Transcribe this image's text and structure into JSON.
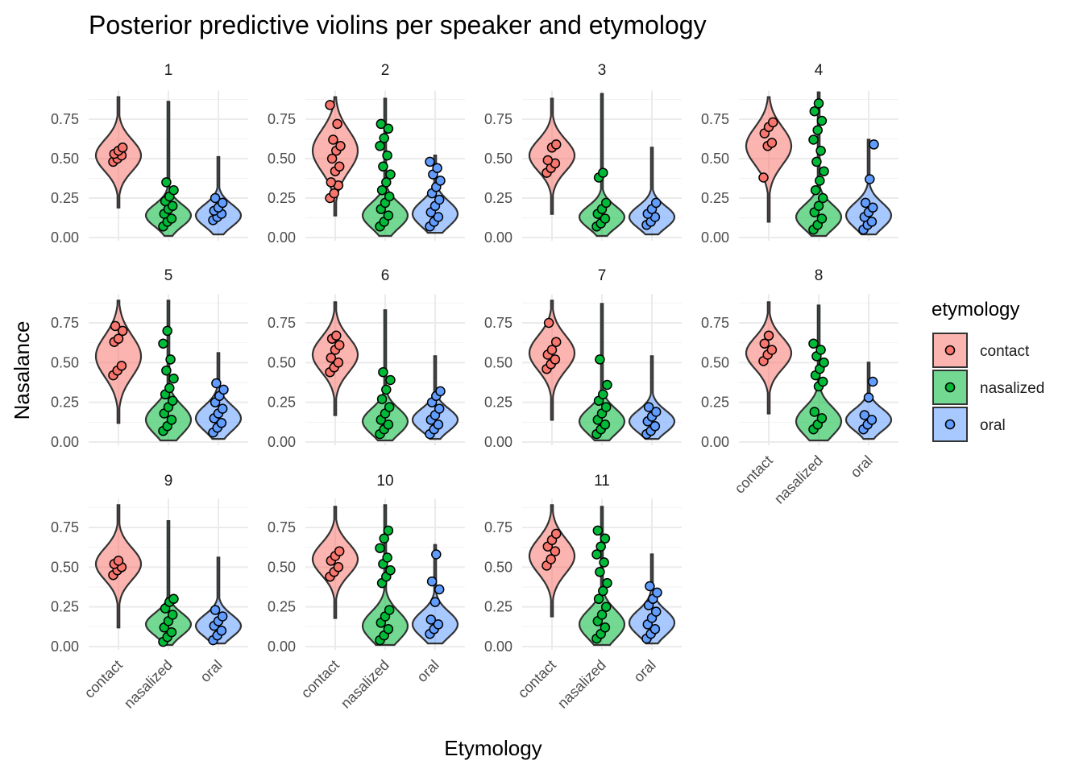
{
  "chart_data": {
    "type": "violin",
    "title": "Posterior predictive violins per speaker and etymology",
    "xlabel": "Etymology",
    "ylabel": "Nasalance",
    "categories": [
      "contact",
      "nasalized",
      "oral"
    ],
    "ylim": [
      0,
      0.9
    ],
    "yticks": [
      "0.00",
      "0.25",
      "0.50",
      "0.75"
    ],
    "grid": "on",
    "legend": {
      "title": "etymology",
      "position": "right",
      "entries": [
        {
          "label": "contact",
          "fill": "#F8766D"
        },
        {
          "label": "nasalized",
          "fill": "#00BA38"
        },
        {
          "label": "oral",
          "fill": "#619CFF"
        }
      ]
    },
    "facets": [
      {
        "speaker": "1",
        "violins": [
          {
            "min": 0.19,
            "max": 0.89,
            "median": 0.52,
            "spread": 0.1,
            "skew": 0
          },
          {
            "min": 0.01,
            "max": 0.86,
            "median": 0.14,
            "spread": 0.07,
            "skew": 1
          },
          {
            "min": 0.02,
            "max": 0.51,
            "median": 0.14,
            "spread": 0.07,
            "skew": 1
          }
        ],
        "points": [
          [
            0.48,
            0.5,
            0.52,
            0.53,
            0.55,
            0.57
          ],
          [
            0.07,
            0.1,
            0.12,
            0.15,
            0.18,
            0.2,
            0.23,
            0.26,
            0.3,
            0.35
          ],
          [
            0.11,
            0.13,
            0.15,
            0.17,
            0.19,
            0.22,
            0.25
          ]
        ]
      },
      {
        "speaker": "2",
        "violins": [
          {
            "min": 0.14,
            "max": 0.89,
            "median": 0.55,
            "spread": 0.13,
            "skew": 0
          },
          {
            "min": 0.01,
            "max": 0.88,
            "median": 0.14,
            "spread": 0.08,
            "skew": 1
          },
          {
            "min": 0.03,
            "max": 0.52,
            "median": 0.15,
            "spread": 0.08,
            "skew": 1
          }
        ],
        "points": [
          [
            0.25,
            0.28,
            0.33,
            0.35,
            0.42,
            0.45,
            0.5,
            0.55,
            0.58,
            0.62,
            0.72,
            0.84
          ],
          [
            0.07,
            0.1,
            0.14,
            0.18,
            0.22,
            0.26,
            0.3,
            0.35,
            0.4,
            0.45,
            0.52,
            0.58,
            0.63,
            0.69,
            0.72
          ],
          [
            0.07,
            0.1,
            0.13,
            0.16,
            0.2,
            0.24,
            0.28,
            0.32,
            0.36,
            0.4,
            0.44,
            0.48
          ]
        ]
      },
      {
        "speaker": "3",
        "violins": [
          {
            "min": 0.15,
            "max": 0.88,
            "median": 0.52,
            "spread": 0.1,
            "skew": 0
          },
          {
            "min": 0.01,
            "max": 0.91,
            "median": 0.13,
            "spread": 0.07,
            "skew": 1
          },
          {
            "min": 0.02,
            "max": 0.57,
            "median": 0.13,
            "spread": 0.07,
            "skew": 1
          }
        ],
        "points": [
          [
            0.41,
            0.44,
            0.47,
            0.49,
            0.57,
            0.59
          ],
          [
            0.07,
            0.09,
            0.12,
            0.15,
            0.18,
            0.22,
            0.38,
            0.41
          ],
          [
            0.08,
            0.1,
            0.13,
            0.15,
            0.18,
            0.22
          ]
        ]
      },
      {
        "speaker": "4",
        "violins": [
          {
            "min": 0.1,
            "max": 0.89,
            "median": 0.58,
            "spread": 0.12,
            "skew": 0
          },
          {
            "min": 0.01,
            "max": 0.92,
            "median": 0.13,
            "spread": 0.08,
            "skew": 1
          },
          {
            "min": 0.02,
            "max": 0.62,
            "median": 0.14,
            "spread": 0.08,
            "skew": 1
          }
        ],
        "points": [
          [
            0.38,
            0.58,
            0.6,
            0.66,
            0.7,
            0.73
          ],
          [
            0.05,
            0.08,
            0.12,
            0.16,
            0.2,
            0.25,
            0.3,
            0.36,
            0.42,
            0.48,
            0.55,
            0.62,
            0.68,
            0.74,
            0.8,
            0.85
          ],
          [
            0.05,
            0.08,
            0.1,
            0.13,
            0.16,
            0.19,
            0.22,
            0.37,
            0.59
          ]
        ]
      },
      {
        "speaker": "5",
        "violins": [
          {
            "min": 0.12,
            "max": 0.89,
            "median": 0.54,
            "spread": 0.13,
            "skew": 0
          },
          {
            "min": 0.01,
            "max": 0.89,
            "median": 0.14,
            "spread": 0.09,
            "skew": 1
          },
          {
            "min": 0.02,
            "max": 0.56,
            "median": 0.15,
            "spread": 0.08,
            "skew": 1
          }
        ],
        "points": [
          [
            0.42,
            0.45,
            0.48,
            0.63,
            0.65,
            0.7,
            0.73
          ],
          [
            0.07,
            0.1,
            0.14,
            0.18,
            0.22,
            0.26,
            0.3,
            0.34,
            0.4,
            0.45,
            0.52,
            0.62,
            0.7
          ],
          [
            0.06,
            0.09,
            0.12,
            0.15,
            0.18,
            0.21,
            0.25,
            0.29,
            0.33,
            0.37
          ]
        ]
      },
      {
        "speaker": "6",
        "violins": [
          {
            "min": 0.17,
            "max": 0.88,
            "median": 0.55,
            "spread": 0.11,
            "skew": 0
          },
          {
            "min": 0.01,
            "max": 0.83,
            "median": 0.13,
            "spread": 0.08,
            "skew": 1
          },
          {
            "min": 0.02,
            "max": 0.54,
            "median": 0.14,
            "spread": 0.07,
            "skew": 1
          }
        ],
        "points": [
          [
            0.44,
            0.47,
            0.5,
            0.53,
            0.58,
            0.61,
            0.65,
            0.67
          ],
          [
            0.05,
            0.08,
            0.11,
            0.14,
            0.18,
            0.22,
            0.27,
            0.33,
            0.39,
            0.44
          ],
          [
            0.05,
            0.08,
            0.11,
            0.14,
            0.17,
            0.21,
            0.25,
            0.29,
            0.32
          ]
        ]
      },
      {
        "speaker": "7",
        "violins": [
          {
            "min": 0.14,
            "max": 0.89,
            "median": 0.56,
            "spread": 0.11,
            "skew": 0
          },
          {
            "min": 0.01,
            "max": 0.87,
            "median": 0.13,
            "spread": 0.08,
            "skew": 1
          },
          {
            "min": 0.02,
            "max": 0.54,
            "median": 0.13,
            "spread": 0.07,
            "skew": 1
          }
        ],
        "points": [
          [
            0.46,
            0.49,
            0.52,
            0.55,
            0.58,
            0.63,
            0.75
          ],
          [
            0.05,
            0.08,
            0.11,
            0.14,
            0.18,
            0.22,
            0.26,
            0.3,
            0.36,
            0.52
          ],
          [
            0.05,
            0.07,
            0.1,
            0.13,
            0.16,
            0.19,
            0.22
          ]
        ]
      },
      {
        "speaker": "8",
        "violins": [
          {
            "min": 0.18,
            "max": 0.88,
            "median": 0.56,
            "spread": 0.1,
            "skew": 0
          },
          {
            "min": 0.01,
            "max": 0.86,
            "median": 0.13,
            "spread": 0.09,
            "skew": 1
          },
          {
            "min": 0.02,
            "max": 0.5,
            "median": 0.14,
            "spread": 0.07,
            "skew": 1
          }
        ],
        "points": [
          [
            0.51,
            0.55,
            0.58,
            0.62,
            0.67
          ],
          [
            0.08,
            0.11,
            0.15,
            0.19,
            0.35,
            0.38,
            0.42,
            0.46,
            0.5,
            0.54,
            0.58,
            0.62
          ],
          [
            0.08,
            0.11,
            0.14,
            0.17,
            0.28,
            0.38
          ]
        ]
      },
      {
        "speaker": "9",
        "violins": [
          {
            "min": 0.12,
            "max": 0.89,
            "median": 0.52,
            "spread": 0.1,
            "skew": 0
          },
          {
            "min": 0.01,
            "max": 0.79,
            "median": 0.14,
            "spread": 0.07,
            "skew": 1
          },
          {
            "min": 0.02,
            "max": 0.56,
            "median": 0.13,
            "spread": 0.07,
            "skew": 1
          }
        ],
        "points": [
          [
            0.45,
            0.48,
            0.5,
            0.52,
            0.54
          ],
          [
            0.03,
            0.06,
            0.09,
            0.12,
            0.16,
            0.2,
            0.24,
            0.28,
            0.3
          ],
          [
            0.04,
            0.07,
            0.1,
            0.13,
            0.16,
            0.19,
            0.23
          ]
        ]
      },
      {
        "speaker": "10",
        "violins": [
          {
            "min": 0.18,
            "max": 0.88,
            "median": 0.55,
            "spread": 0.1,
            "skew": 0
          },
          {
            "min": 0.01,
            "max": 0.89,
            "median": 0.13,
            "spread": 0.09,
            "skew": 1
          },
          {
            "min": 0.02,
            "max": 0.64,
            "median": 0.14,
            "spread": 0.08,
            "skew": 1
          }
        ],
        "points": [
          [
            0.44,
            0.47,
            0.5,
            0.54,
            0.57,
            0.6
          ],
          [
            0.04,
            0.07,
            0.11,
            0.15,
            0.19,
            0.23,
            0.4,
            0.44,
            0.48,
            0.52,
            0.56,
            0.62,
            0.68,
            0.73
          ],
          [
            0.08,
            0.11,
            0.14,
            0.17,
            0.28,
            0.36,
            0.41,
            0.58
          ]
        ]
      },
      {
        "speaker": "11",
        "violins": [
          {
            "min": 0.19,
            "max": 0.89,
            "median": 0.57,
            "spread": 0.11,
            "skew": 0
          },
          {
            "min": 0.01,
            "max": 0.88,
            "median": 0.14,
            "spread": 0.09,
            "skew": 1
          },
          {
            "min": 0.02,
            "max": 0.58,
            "median": 0.15,
            "spread": 0.08,
            "skew": 1
          }
        ],
        "points": [
          [
            0.51,
            0.55,
            0.6,
            0.63,
            0.67,
            0.71
          ],
          [
            0.05,
            0.08,
            0.12,
            0.16,
            0.2,
            0.25,
            0.3,
            0.35,
            0.4,
            0.47,
            0.53,
            0.58,
            0.63,
            0.68,
            0.73
          ],
          [
            0.05,
            0.08,
            0.11,
            0.14,
            0.18,
            0.22,
            0.26,
            0.3,
            0.34,
            0.38
          ]
        ]
      }
    ]
  }
}
